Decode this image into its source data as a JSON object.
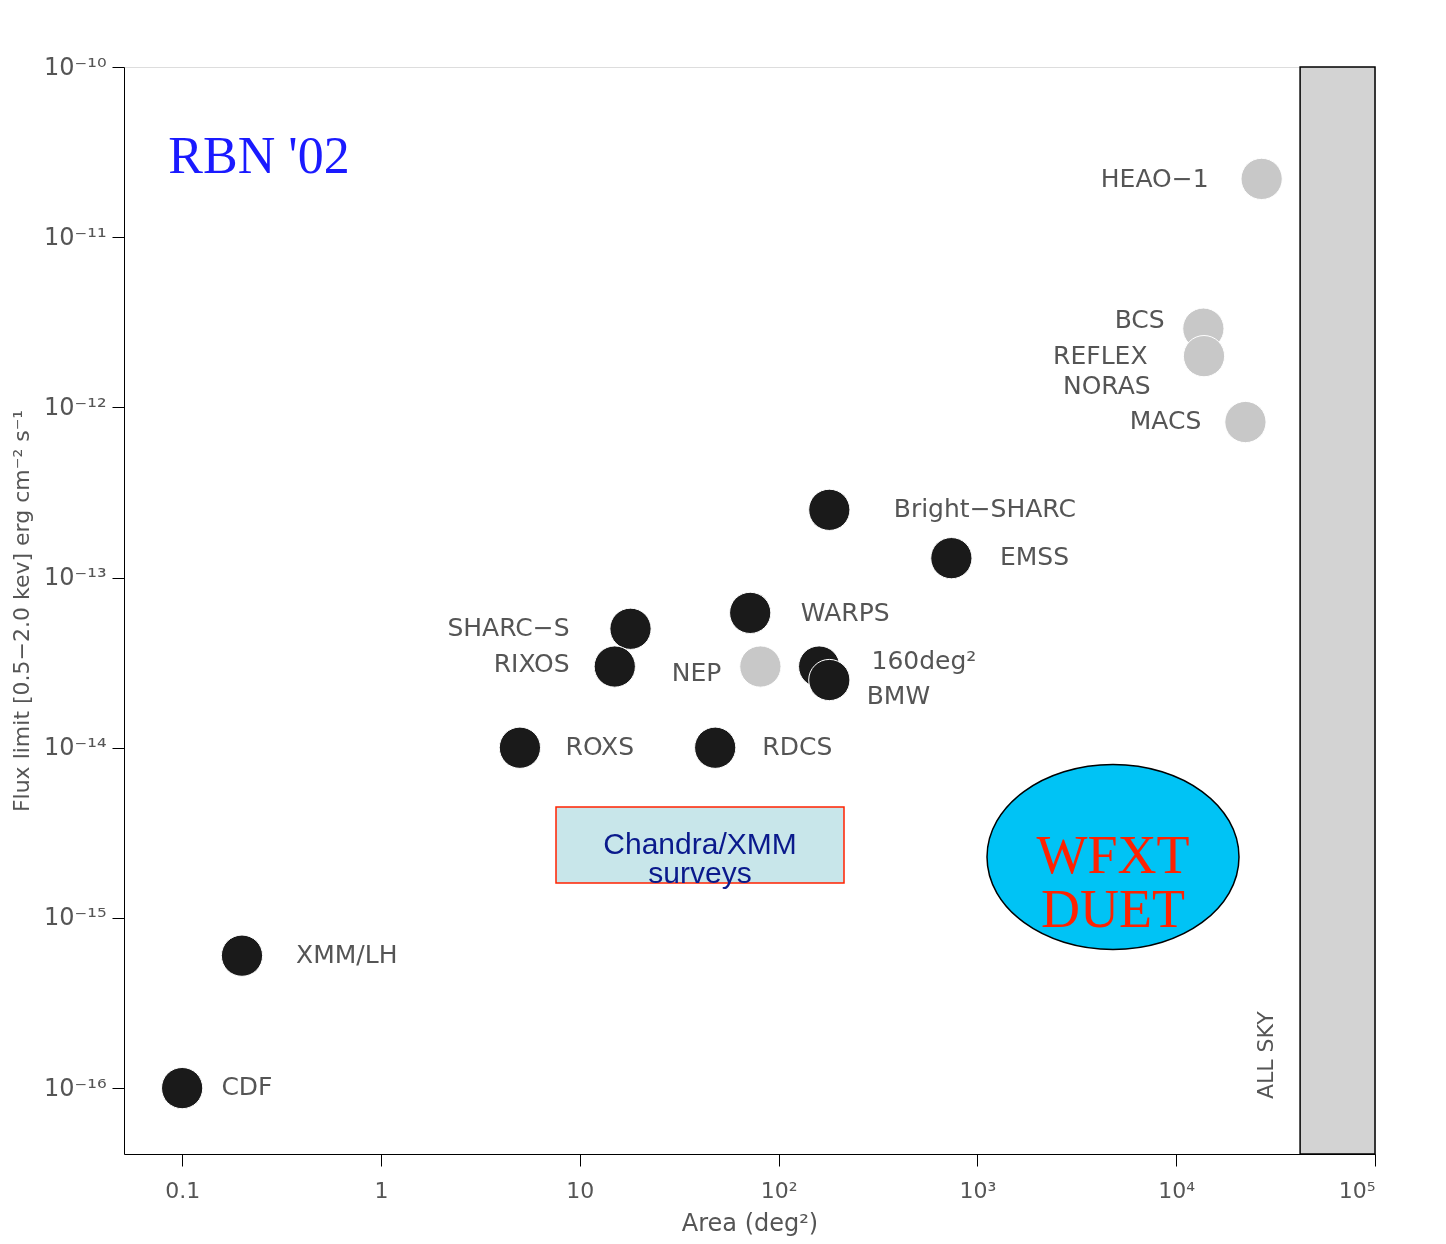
{
  "chart_data": {
    "type": "scatter",
    "xlabel": "Area (deg²)",
    "ylabel": "Flux limit [0.5−2.0 kev] erg cm⁻² s⁻¹",
    "log": "xy",
    "grid": false,
    "legend": false,
    "marker": "circle",
    "xlim": [
      0.051,
      100000
    ],
    "ylim": [
      4.1e-17,
      1e-10
    ],
    "xticks": [
      0.1,
      1,
      10,
      {
        "value": 100,
        "label": "10²"
      },
      {
        "value": 1000,
        "label": "10³"
      },
      {
        "value": 10000,
        "label": "10⁴"
      },
      {
        "value": 100000,
        "label": "10⁵"
      }
    ],
    "yticks": [
      {
        "value": 1e-16,
        "label": "10⁻¹⁶"
      },
      {
        "value": 1e-15,
        "label": "10⁻¹⁵"
      },
      {
        "value": 1e-14,
        "label": "10⁻¹⁴"
      },
      {
        "value": 1e-13,
        "label": "10⁻¹³"
      },
      {
        "value": 1e-12,
        "label": "10⁻¹²"
      },
      {
        "value": 1e-11,
        "label": "10⁻¹¹"
      },
      {
        "value": 1e-10,
        "label": "10⁻¹⁰"
      }
    ],
    "series": [
      {
        "color": "#1a1a1a",
        "x": [
          180,
          740,
          72,
          18,
          15,
          160,
          180,
          5,
          48,
          0.2,
          0.1
        ],
        "values": [
          2.5e-13,
          1.3e-13,
          6.2e-14,
          5e-14,
          3e-14,
          3e-14,
          2.5e-14,
          1e-14,
          1e-14,
          6e-16,
          1e-16
        ]
      },
      {
        "color": "#c8c8c8",
        "x": [
          26900,
          13700,
          13800,
          22300,
          81
        ],
        "values": [
          2.2e-11,
          2.9e-12,
          2e-12,
          8.2e-13,
          3e-14
        ]
      }
    ],
    "bands": [
      {
        "axis": "x",
        "from": 42000,
        "to": 100000,
        "label": "ALL SKY",
        "color": "#d3d3d3"
      }
    ],
    "annotations": [
      {
        "text": "HEAO−1",
        "x": 26900,
        "y": 2.2e-11
      },
      {
        "text": "BCS",
        "x": 13700,
        "y": 2.9e-12
      },
      {
        "text": "REFLEX",
        "x": 13800,
        "y": 2e-12
      },
      {
        "text": "NORAS",
        "x": 13800,
        "y": 2e-12
      },
      {
        "text": "MACS",
        "x": 22300,
        "y": 8.2e-13
      },
      {
        "text": "Bright−SHARC",
        "x": 180,
        "y": 2.5e-13
      },
      {
        "text": "EMSS",
        "x": 740,
        "y": 1.3e-13
      },
      {
        "text": "WARPS",
        "x": 72,
        "y": 6.2e-14
      },
      {
        "text": "SHARC−S",
        "x": 18,
        "y": 5e-14
      },
      {
        "text": "RIXOS",
        "x": 15,
        "y": 3e-14
      },
      {
        "text": "NEP",
        "x": 81,
        "y": 3e-14
      },
      {
        "text": "160deg²",
        "x": 160,
        "y": 3e-14
      },
      {
        "text": "BMW",
        "x": 180,
        "y": 2.5e-14
      },
      {
        "text": "ROXS",
        "x": 5,
        "y": 1e-14
      },
      {
        "text": "RDCS",
        "x": 48,
        "y": 1e-14
      },
      {
        "text": "XMM/LH",
        "x": 0.2,
        "y": 6e-16
      },
      {
        "text": "CDF",
        "x": 0.1,
        "y": 1e-16
      },
      "RBN '02",
      "Chandra/XMM surveys",
      "WFXT DUET"
    ]
  }
}
